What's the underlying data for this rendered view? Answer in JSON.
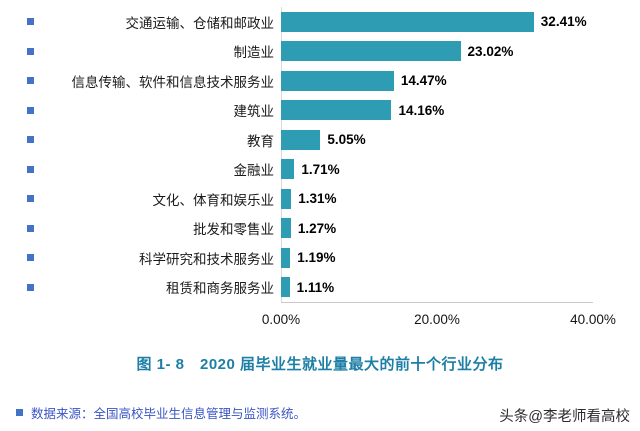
{
  "chart_data": {
    "type": "bar",
    "orientation": "horizontal",
    "title": "",
    "categories": [
      "交通运输、仓储和邮政业",
      "制造业",
      "信息传输、软件和信息技术服务业",
      "建筑业",
      "教育",
      "金融业",
      "文化、体育和娱乐业",
      "批发和零售业",
      "科学研究和技术服务业",
      "租赁和商务服务业"
    ],
    "values": [
      32.41,
      23.02,
      14.47,
      14.16,
      5.05,
      1.71,
      1.31,
      1.27,
      1.19,
      1.11
    ],
    "value_labels": [
      "32.41%",
      "23.02%",
      "14.47%",
      "14.16%",
      "5.05%",
      "1.71%",
      "1.31%",
      "1.27%",
      "1.19%",
      "1.11%"
    ],
    "x_ticks": [
      "0.00%",
      "20.00%",
      "40.00%"
    ],
    "xlim": [
      0,
      40
    ],
    "xlabel": "",
    "ylabel": "",
    "grid": false,
    "legend": false,
    "bar_color": "#2E9DB3"
  },
  "caption": "图 1- 8　2020 届毕业生就业量最大的前十个行业分布",
  "source_note": "数据来源：全国高校毕业生信息管理与监测系统。",
  "watermark": "头条@李老师看高校",
  "colors": {
    "bar": "#2E9DB3",
    "caption": "#1E7FA6",
    "source_text": "#3A55C4",
    "bullet": "#4472C4",
    "axis_line": "#C9C9C9",
    "value_label": "#000000"
  }
}
